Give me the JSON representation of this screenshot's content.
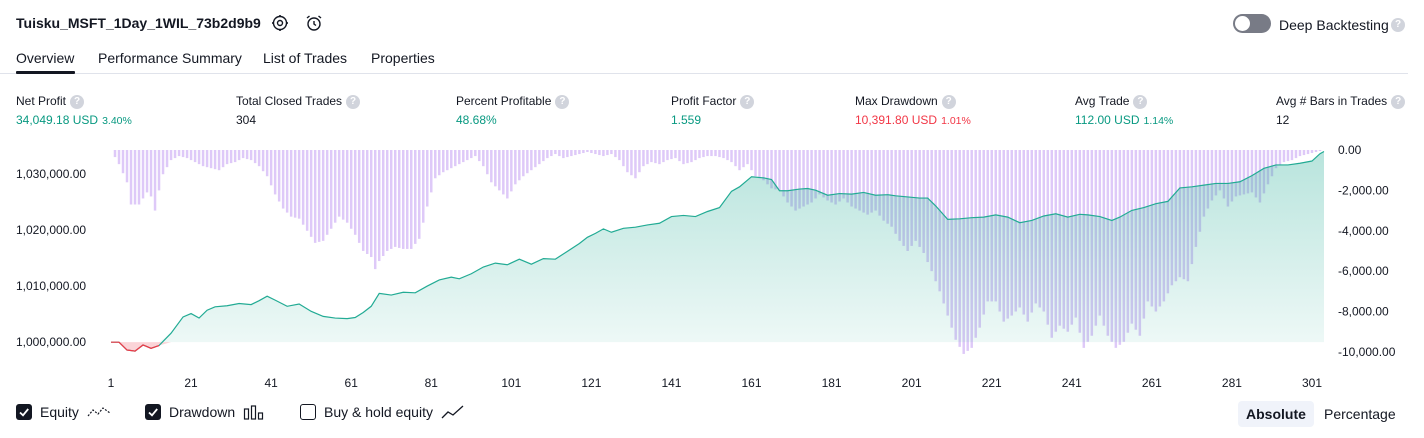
{
  "header": {
    "title": "Tuisku_MSFT_1Day_1WIL_73b2d9b9",
    "deep_backtesting_label": "Deep Backtesting",
    "help_glyph": "?"
  },
  "tabs": [
    {
      "label": "Overview",
      "active": true
    },
    {
      "label": "Performance Summary",
      "active": false
    },
    {
      "label": "List of Trades",
      "active": false
    },
    {
      "label": "Properties",
      "active": false
    }
  ],
  "metrics": [
    {
      "label": "Net Profit",
      "value": "34,049.18 USD",
      "pct": "3.40%",
      "color": "#089981"
    },
    {
      "label": "Total Closed Trades",
      "value": "304",
      "pct": "",
      "color": "#131722"
    },
    {
      "label": "Percent Profitable",
      "value": "48.68%",
      "pct": "",
      "color": "#089981"
    },
    {
      "label": "Profit Factor",
      "value": "1.559",
      "pct": "",
      "color": "#089981"
    },
    {
      "label": "Max Drawdown",
      "value": "10,391.80 USD",
      "pct": "1.01%",
      "color": "#f23645"
    },
    {
      "label": "Avg Trade",
      "value": "112.00 USD",
      "pct": "1.14%",
      "color": "#089981"
    },
    {
      "label": "Avg # Bars in Trades",
      "value": "12",
      "pct": "",
      "color": "#131722"
    }
  ],
  "chart_data": {
    "type": "area",
    "x_ticks": [
      "1",
      "21",
      "41",
      "61",
      "81",
      "101",
      "121",
      "141",
      "161",
      "181",
      "201",
      "221",
      "241",
      "261",
      "281",
      "301"
    ],
    "xlim": [
      1,
      304
    ],
    "left_axis": {
      "label": "",
      "ticks": [
        "1,030,000.00",
        "1,020,000.00",
        "1,010,000.00",
        "1,000,000.00"
      ],
      "ylim": [
        997000,
        1034800
      ],
      "baseline": 1000000
    },
    "right_axis": {
      "label": "",
      "ticks": [
        "0.00",
        "-2,000.00",
        "-4,000.00",
        "-6,000.00",
        "-8,000.00",
        "-10,000.00"
      ],
      "ylim": [
        -10500,
        0
      ]
    },
    "series": [
      {
        "name": "Equity",
        "type": "line",
        "color": "#22ab94",
        "points": [
          [
            1,
            1000000
          ],
          [
            3,
            1000000
          ],
          [
            5,
            998600
          ],
          [
            7,
            998400
          ],
          [
            9,
            999500
          ],
          [
            11,
            998900
          ],
          [
            13,
            999400
          ],
          [
            16,
            1001600
          ],
          [
            19,
            1004500
          ],
          [
            21,
            1005100
          ],
          [
            23,
            1004300
          ],
          [
            25,
            1005700
          ],
          [
            27,
            1006300
          ],
          [
            30,
            1006500
          ],
          [
            33,
            1006900
          ],
          [
            36,
            1006700
          ],
          [
            38,
            1007400
          ],
          [
            40,
            1008200
          ],
          [
            42,
            1007500
          ],
          [
            45,
            1006400
          ],
          [
            48,
            1006800
          ],
          [
            51,
            1005500
          ],
          [
            54,
            1004600
          ],
          [
            57,
            1004300
          ],
          [
            60,
            1004200
          ],
          [
            62,
            1004400
          ],
          [
            64,
            1005300
          ],
          [
            66,
            1006400
          ],
          [
            68,
            1008700
          ],
          [
            71,
            1008400
          ],
          [
            74,
            1008900
          ],
          [
            77,
            1008800
          ],
          [
            80,
            1010000
          ],
          [
            83,
            1011100
          ],
          [
            86,
            1011600
          ],
          [
            88,
            1011300
          ],
          [
            91,
            1012200
          ],
          [
            94,
            1013400
          ],
          [
            97,
            1014100
          ],
          [
            100,
            1013800
          ],
          [
            103,
            1014800
          ],
          [
            106,
            1013900
          ],
          [
            109,
            1014900
          ],
          [
            112,
            1014800
          ],
          [
            115,
            1016200
          ],
          [
            118,
            1017600
          ],
          [
            120,
            1018700
          ],
          [
            122,
            1019400
          ],
          [
            124,
            1020200
          ],
          [
            126,
            1019600
          ],
          [
            129,
            1020300
          ],
          [
            132,
            1020500
          ],
          [
            135,
            1020900
          ],
          [
            138,
            1021200
          ],
          [
            141,
            1022400
          ],
          [
            144,
            1022600
          ],
          [
            147,
            1022400
          ],
          [
            150,
            1023300
          ],
          [
            153,
            1024000
          ],
          [
            156,
            1026900
          ],
          [
            158,
            1027700
          ],
          [
            161,
            1029500
          ],
          [
            164,
            1029300
          ],
          [
            166,
            1029000
          ],
          [
            168,
            1027000
          ],
          [
            170,
            1027000
          ],
          [
            173,
            1027300
          ],
          [
            175,
            1027400
          ],
          [
            177,
            1027100
          ],
          [
            180,
            1026200
          ],
          [
            183,
            1026500
          ],
          [
            186,
            1026400
          ],
          [
            189,
            1026700
          ],
          [
            192,
            1026200
          ],
          [
            195,
            1026300
          ],
          [
            197,
            1026100
          ],
          [
            200,
            1025900
          ],
          [
            203,
            1025700
          ],
          [
            205,
            1025700
          ],
          [
            207,
            1024300
          ],
          [
            210,
            1021900
          ],
          [
            213,
            1022000
          ],
          [
            216,
            1022200
          ],
          [
            219,
            1022300
          ],
          [
            222,
            1022700
          ],
          [
            225,
            1022300
          ],
          [
            228,
            1021300
          ],
          [
            231,
            1021700
          ],
          [
            234,
            1022500
          ],
          [
            237,
            1022900
          ],
          [
            240,
            1022300
          ],
          [
            243,
            1022800
          ],
          [
            245,
            1022700
          ],
          [
            248,
            1022400
          ],
          [
            251,
            1021700
          ],
          [
            253,
            1022300
          ],
          [
            256,
            1023500
          ],
          [
            259,
            1024000
          ],
          [
            262,
            1024700
          ],
          [
            265,
            1025100
          ],
          [
            268,
            1027500
          ],
          [
            271,
            1027700
          ],
          [
            274,
            1028000
          ],
          [
            277,
            1028300
          ],
          [
            280,
            1028300
          ],
          [
            283,
            1028600
          ],
          [
            286,
            1029700
          ],
          [
            289,
            1031000
          ],
          [
            292,
            1031600
          ],
          [
            295,
            1031600
          ],
          [
            298,
            1031900
          ],
          [
            301,
            1032300
          ],
          [
            303,
            1033600
          ],
          [
            304,
            1034000
          ]
        ]
      },
      {
        "name": "Drawdown",
        "type": "bar",
        "color": "#d1b4f5",
        "points": [
          [
            1,
            0
          ],
          [
            3,
            -700
          ],
          [
            5,
            -1600
          ],
          [
            6,
            -2700
          ],
          [
            8,
            -2700
          ],
          [
            10,
            -2100
          ],
          [
            11,
            -2300
          ],
          [
            12,
            -3000
          ],
          [
            13,
            -2000
          ],
          [
            14,
            -1200
          ],
          [
            16,
            -500
          ],
          [
            18,
            -300
          ],
          [
            20,
            -400
          ],
          [
            22,
            -600
          ],
          [
            24,
            -800
          ],
          [
            26,
            -900
          ],
          [
            28,
            -1000
          ],
          [
            30,
            -700
          ],
          [
            32,
            -600
          ],
          [
            34,
            -400
          ],
          [
            36,
            -500
          ],
          [
            38,
            -800
          ],
          [
            40,
            -1300
          ],
          [
            42,
            -2200
          ],
          [
            44,
            -2900
          ],
          [
            46,
            -3300
          ],
          [
            48,
            -3400
          ],
          [
            50,
            -4000
          ],
          [
            52,
            -4600
          ],
          [
            54,
            -4500
          ],
          [
            56,
            -3900
          ],
          [
            58,
            -3300
          ],
          [
            60,
            -3600
          ],
          [
            62,
            -4200
          ],
          [
            64,
            -5000
          ],
          [
            66,
            -5300
          ],
          [
            67,
            -5900
          ],
          [
            68,
            -5500
          ],
          [
            70,
            -5000
          ],
          [
            72,
            -4800
          ],
          [
            74,
            -4900
          ],
          [
            76,
            -4900
          ],
          [
            78,
            -4400
          ],
          [
            80,
            -2800
          ],
          [
            82,
            -1400
          ],
          [
            84,
            -1100
          ],
          [
            86,
            -900
          ],
          [
            88,
            -700
          ],
          [
            90,
            -500
          ],
          [
            92,
            -300
          ],
          [
            94,
            -800
          ],
          [
            96,
            -1600
          ],
          [
            98,
            -2000
          ],
          [
            100,
            -2400
          ],
          [
            102,
            -1700
          ],
          [
            104,
            -1300
          ],
          [
            106,
            -1000
          ],
          [
            108,
            -700
          ],
          [
            110,
            -400
          ],
          [
            112,
            -200
          ],
          [
            114,
            -400
          ],
          [
            116,
            -300
          ],
          [
            118,
            -200
          ],
          [
            120,
            -100
          ],
          [
            122,
            -200
          ],
          [
            124,
            -300
          ],
          [
            126,
            -200
          ],
          [
            128,
            -500
          ],
          [
            130,
            -1100
          ],
          [
            132,
            -1400
          ],
          [
            134,
            -800
          ],
          [
            136,
            -600
          ],
          [
            138,
            -700
          ],
          [
            140,
            -500
          ],
          [
            142,
            -400
          ],
          [
            144,
            -700
          ],
          [
            146,
            -600
          ],
          [
            148,
            -400
          ],
          [
            150,
            -300
          ],
          [
            152,
            -300
          ],
          [
            154,
            -400
          ],
          [
            156,
            -600
          ],
          [
            158,
            -1000
          ],
          [
            160,
            -700
          ],
          [
            162,
            -1300
          ],
          [
            164,
            -1500
          ],
          [
            166,
            -1900
          ],
          [
            168,
            -2000
          ],
          [
            170,
            -2600
          ],
          [
            172,
            -3000
          ],
          [
            174,
            -2800
          ],
          [
            176,
            -2600
          ],
          [
            178,
            -2200
          ],
          [
            180,
            -2500
          ],
          [
            182,
            -2700
          ],
          [
            184,
            -2400
          ],
          [
            186,
            -2800
          ],
          [
            188,
            -3000
          ],
          [
            190,
            -3200
          ],
          [
            192,
            -3000
          ],
          [
            194,
            -3500
          ],
          [
            196,
            -3800
          ],
          [
            198,
            -4500
          ],
          [
            200,
            -5000
          ],
          [
            202,
            -4500
          ],
          [
            204,
            -5100
          ],
          [
            206,
            -6000
          ],
          [
            208,
            -7000
          ],
          [
            210,
            -8200
          ],
          [
            212,
            -9400
          ],
          [
            214,
            -10100
          ],
          [
            216,
            -9800
          ],
          [
            218,
            -8800
          ],
          [
            220,
            -7500
          ],
          [
            222,
            -7500
          ],
          [
            224,
            -8500
          ],
          [
            226,
            -8200
          ],
          [
            228,
            -7800
          ],
          [
            230,
            -8500
          ],
          [
            232,
            -7600
          ],
          [
            234,
            -8000
          ],
          [
            236,
            -9300
          ],
          [
            238,
            -8700
          ],
          [
            240,
            -9000
          ],
          [
            242,
            -8300
          ],
          [
            244,
            -9800
          ],
          [
            246,
            -9200
          ],
          [
            248,
            -8200
          ],
          [
            250,
            -9200
          ],
          [
            252,
            -9800
          ],
          [
            254,
            -9500
          ],
          [
            256,
            -8600
          ],
          [
            258,
            -9200
          ],
          [
            260,
            -7500
          ],
          [
            262,
            -8000
          ],
          [
            264,
            -7500
          ],
          [
            266,
            -6700
          ],
          [
            268,
            -6300
          ],
          [
            270,
            -6500
          ],
          [
            272,
            -4800
          ],
          [
            274,
            -3300
          ],
          [
            276,
            -2500
          ],
          [
            278,
            -2000
          ],
          [
            280,
            -2800
          ],
          [
            282,
            -2300
          ],
          [
            284,
            -2200
          ],
          [
            286,
            -2100
          ],
          [
            288,
            -2600
          ],
          [
            290,
            -1700
          ],
          [
            292,
            -900
          ],
          [
            294,
            -600
          ],
          [
            296,
            -500
          ],
          [
            298,
            -300
          ],
          [
            300,
            -200
          ],
          [
            302,
            -100
          ],
          [
            304,
            0
          ]
        ]
      }
    ],
    "legend_position": "bottom-left",
    "grid": false
  },
  "legend": [
    {
      "label": "Equity",
      "checked": true
    },
    {
      "label": "Drawdown",
      "checked": true
    },
    {
      "label": "Buy & hold equity",
      "checked": false
    }
  ],
  "scale_toggle": {
    "absolute_label": "Absolute",
    "percentage_label": "Percentage",
    "selected": "Absolute"
  },
  "colors": {
    "profit": "#089981",
    "loss": "#f23645",
    "equity_line": "#22ab94",
    "drawdown_bar": "#d1b4f5",
    "neutral": "#131722"
  }
}
